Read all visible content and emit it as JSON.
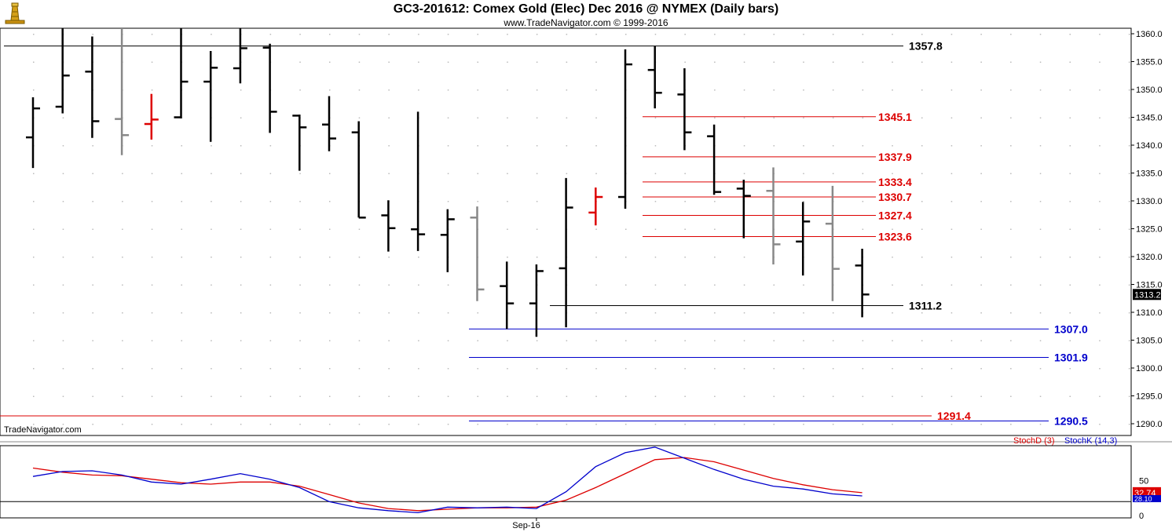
{
  "header": {
    "title": "GC3-201612:  Comex Gold (Elec) Dec 2016 @ NYMEX  (Daily bars)",
    "copyright": "www.TradeNavigator.com © 1999-2016"
  },
  "icons": {
    "logo": "lighthouse-icon"
  },
  "watermark": "TradeNavigator.com",
  "colors": {
    "bar_up": "#000000",
    "bar_gray": "#888888",
    "bar_red": "#dd0000",
    "line_black": "#000000",
    "line_red": "#dd0000",
    "line_blue": "#0000cc",
    "stoch_d": "#dd0000",
    "stoch_k": "#0000cc",
    "dot": "#bbbbbb"
  },
  "chart_data": [
    {
      "type": "ohlc",
      "title": "GC3-201612:  Comex Gold (Elec) Dec 2016 @ NYMEX  (Daily bars)",
      "ylim": [
        1287.5,
        1362
      ],
      "yticks": [
        1290,
        1295,
        1300,
        1305,
        1310,
        1315,
        1320,
        1325,
        1330,
        1335,
        1340,
        1345,
        1350,
        1355,
        1360
      ],
      "ytick_labels": [
        "1290.0",
        "1295.0",
        "1300.0",
        "1305.0",
        "1310.0",
        "1315.0",
        "1320.0",
        "1325.0",
        "1330.0",
        "1335.0",
        "1340.0",
        "1345.0",
        "1350.0",
        "1355.0",
        "1360.0"
      ],
      "xtick_label": "Sep-16",
      "xtick_index": 17,
      "last_price": "1313.2",
      "bars": [
        {
          "o": 1341.4,
          "h": 1348.6,
          "l": 1335.9,
          "c": 1346.6,
          "color": "black"
        },
        {
          "o": 1346.9,
          "h": 1362.0,
          "l": 1345.7,
          "c": 1352.5,
          "color": "black"
        },
        {
          "o": 1353.2,
          "h": 1359.5,
          "l": 1341.3,
          "c": 1344.3,
          "color": "black"
        },
        {
          "o": 1344.7,
          "h": 1362.0,
          "l": 1338.2,
          "c": 1341.8,
          "color": "gray"
        },
        {
          "o": 1343.8,
          "h": 1349.2,
          "l": 1341.0,
          "c": 1344.6,
          "color": "red"
        },
        {
          "o": 1345.0,
          "h": 1362.0,
          "l": 1344.8,
          "c": 1351.4,
          "color": "black"
        },
        {
          "o": 1351.4,
          "h": 1356.9,
          "l": 1340.6,
          "c": 1353.9,
          "color": "black"
        },
        {
          "o": 1353.8,
          "h": 1362.0,
          "l": 1351.1,
          "c": 1357.4,
          "color": "black"
        },
        {
          "o": 1357.5,
          "h": 1358.2,
          "l": 1342.2,
          "c": 1346.0,
          "color": "black"
        },
        {
          "o": 1345.3,
          "h": 1345.5,
          "l": 1335.4,
          "c": 1343.2,
          "color": "black"
        },
        {
          "o": 1343.7,
          "h": 1348.8,
          "l": 1338.9,
          "c": 1341.2,
          "color": "black"
        },
        {
          "o": 1342.3,
          "h": 1344.3,
          "l": 1327.0,
          "c": 1327.0,
          "color": "black"
        },
        {
          "o": 1327.4,
          "h": 1330.1,
          "l": 1320.9,
          "c": 1325.1,
          "color": "black"
        },
        {
          "o": 1324.9,
          "h": 1346.0,
          "l": 1321.0,
          "c": 1324.0,
          "color": "black"
        },
        {
          "o": 1323.9,
          "h": 1328.5,
          "l": 1317.2,
          "c": 1326.7,
          "color": "black"
        },
        {
          "o": 1327.0,
          "h": 1329.0,
          "l": 1312.0,
          "c": 1314.1,
          "color": "gray"
        },
        {
          "o": 1314.7,
          "h": 1319.1,
          "l": 1307.0,
          "c": 1311.6,
          "color": "black"
        },
        {
          "o": 1311.6,
          "h": 1318.6,
          "l": 1305.6,
          "c": 1317.4,
          "color": "black"
        },
        {
          "o": 1317.9,
          "h": 1334.1,
          "l": 1307.3,
          "c": 1328.8,
          "color": "black"
        },
        {
          "o": 1327.9,
          "h": 1332.4,
          "l": 1325.6,
          "c": 1330.7,
          "color": "red"
        },
        {
          "o": 1330.7,
          "h": 1357.2,
          "l": 1328.6,
          "c": 1354.5,
          "color": "black"
        },
        {
          "o": 1353.5,
          "h": 1357.8,
          "l": 1346.6,
          "c": 1349.4,
          "color": "black"
        },
        {
          "o": 1349.1,
          "h": 1353.8,
          "l": 1339.1,
          "c": 1342.3,
          "color": "black"
        },
        {
          "o": 1341.6,
          "h": 1343.7,
          "l": 1331.1,
          "c": 1331.6,
          "color": "black"
        },
        {
          "o": 1332.2,
          "h": 1333.8,
          "l": 1323.3,
          "c": 1330.9,
          "color": "black"
        },
        {
          "o": 1331.8,
          "h": 1336.0,
          "l": 1318.6,
          "c": 1322.2,
          "color": "gray"
        },
        {
          "o": 1322.7,
          "h": 1329.8,
          "l": 1316.6,
          "c": 1326.3,
          "color": "black"
        },
        {
          "o": 1325.9,
          "h": 1332.7,
          "l": 1312.0,
          "c": 1317.8,
          "color": "gray"
        },
        {
          "o": 1318.4,
          "h": 1321.4,
          "l": 1309.1,
          "c": 1313.2,
          "color": "black"
        }
      ],
      "levels": [
        {
          "value": 1357.8,
          "label": "1357.8",
          "color": "black",
          "from": 5,
          "to": 1150,
          "label_x": 1157
        },
        {
          "value": 1345.1,
          "label": "1345.1",
          "color": "red",
          "from": 818,
          "to": 1115,
          "label_x": 1118
        },
        {
          "value": 1337.9,
          "label": "1337.9",
          "color": "red",
          "from": 818,
          "to": 1115,
          "label_x": 1118
        },
        {
          "value": 1333.4,
          "label": "1333.4",
          "color": "red",
          "from": 818,
          "to": 1115,
          "label_x": 1118
        },
        {
          "value": 1330.7,
          "label": "1330.7",
          "color": "red",
          "from": 818,
          "to": 1115,
          "label_x": 1118
        },
        {
          "value": 1327.4,
          "label": "1327.4",
          "color": "red",
          "from": 818,
          "to": 1115,
          "label_x": 1118
        },
        {
          "value": 1323.6,
          "label": "1323.6",
          "color": "red",
          "from": 818,
          "to": 1115,
          "label_x": 1118
        },
        {
          "value": 1311.2,
          "label": "1311.2",
          "color": "black",
          "from": 700,
          "to": 1150,
          "label_x": 1157
        },
        {
          "value": 1307.0,
          "label": "1307.0",
          "color": "blue",
          "from": 597,
          "to": 1335,
          "label_x": 1342
        },
        {
          "value": 1301.9,
          "label": "1301.9",
          "color": "blue",
          "from": 597,
          "to": 1335,
          "label_x": 1342
        },
        {
          "value": 1291.4,
          "label": "1291.4",
          "color": "red",
          "from": 0,
          "to": 1186,
          "label_x": 1193
        },
        {
          "value": 1290.5,
          "label": "1290.5",
          "color": "blue",
          "from": 597,
          "to": 1335,
          "label_x": 1342
        }
      ]
    },
    {
      "type": "line",
      "legend": [
        {
          "name": "StochD (3)",
          "color": "red"
        },
        {
          "name": "StochK (14,3)",
          "color": "blue"
        }
      ],
      "ylim": [
        -2,
        100
      ],
      "yticks": [
        0,
        50
      ],
      "ytick_labels": [
        "0",
        "50"
      ],
      "last_values": {
        "d": "32.74",
        "k": "28.10"
      },
      "series": [
        {
          "name": "StochD (3)",
          "values": [
            68,
            62,
            58,
            57,
            52,
            47,
            45,
            48,
            48,
            42,
            30,
            18,
            10,
            7,
            9,
            11,
            11,
            12,
            22,
            40,
            60,
            80,
            83,
            77,
            65,
            53,
            44,
            37,
            32.7
          ]
        },
        {
          "name": "StochK (14,3)",
          "values": [
            56,
            63,
            64,
            58,
            48,
            45,
            52,
            60,
            52,
            40,
            20,
            11,
            7,
            4,
            12,
            11,
            12,
            10,
            34,
            70,
            90,
            98,
            82,
            66,
            52,
            42,
            38,
            31,
            28.1
          ]
        }
      ]
    }
  ]
}
